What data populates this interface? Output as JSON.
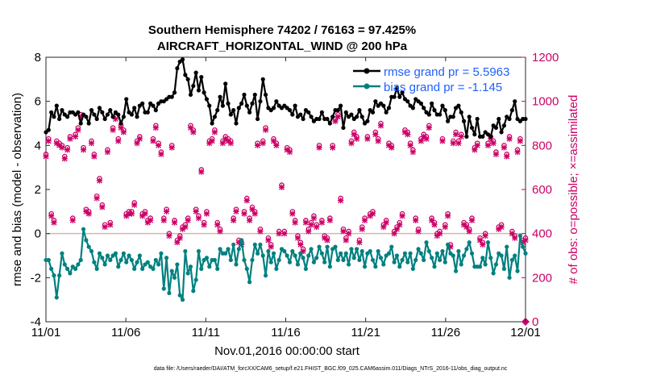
{
  "chart_data": {
    "type": "line",
    "title_line1": "Southern Hemisphere 74202 / 76163 = 97.425%",
    "title_line2": "AIRCRAFT_HORIZONTAL_WIND @ 200 hPa",
    "xlabel": "Nov.01,2016 00:00:00 start",
    "ylabel_left": "rmse and bias (model - observation)",
    "ylabel_right": "# of obs: o=possible; ×=assimilated",
    "footnote": "data file: /Users/raeder/DAI/ATM_forcXX/CAM6_setup/f.e21.FHIST_BGC.f09_025.CAM6assim.011/Diags_NTrS_2016-11/obs_diag_output.nc",
    "x_ticks": [
      "11/01",
      "11/06",
      "11/11",
      "11/16",
      "11/21",
      "11/26",
      "12/01"
    ],
    "x_range_days": [
      0,
      30
    ],
    "y_left_ticks": [
      "-4",
      "-2",
      "0",
      "2",
      "4",
      "6",
      "8"
    ],
    "y_left_range": [
      -4,
      8
    ],
    "y_right_ticks": [
      "0",
      "200",
      "400",
      "600",
      "800",
      "1000",
      "1200"
    ],
    "y_right_range": [
      0,
      1200
    ],
    "legend": [
      {
        "label": "rmse grand pr = 5.5963",
        "series": "rmse"
      },
      {
        "label": "bias grand pr = -1.145",
        "series": "bias"
      }
    ],
    "colors": {
      "rmse": "#000000",
      "bias": "#008080",
      "obs": "#cc0066",
      "legend_text": "#1f5fff",
      "zero_line": "#d9b3b3"
    },
    "series": [
      {
        "name": "rmse",
        "axis": "left",
        "values": [
          4.6,
          4.7,
          5.5,
          5.3,
          5.8,
          5.2,
          5.6,
          5.4,
          5.3,
          5.5,
          5.5,
          5.4,
          5.5,
          5.0,
          5.4,
          5.3,
          5.0,
          5.6,
          5.4,
          5.2,
          5.7,
          5.5,
          5.2,
          5.4,
          5.6,
          5.3,
          5.5,
          5.4,
          5.0,
          5.3,
          6.1,
          5.5,
          5.4,
          5.7,
          5.3,
          5.8,
          5.9,
          5.5,
          5.5,
          5.9,
          5.8,
          5.6,
          5.9,
          6.0,
          6.0,
          6.1,
          6.2,
          6.2,
          6.4,
          7.5,
          7.8,
          7.9,
          7.2,
          7.0,
          6.3,
          6.7,
          7.3,
          6.5,
          7.1,
          6.4,
          6.1,
          5.8,
          5.0,
          5.3,
          5.6,
          6.2,
          5.8,
          6.8,
          5.9,
          5.4,
          5.6,
          5.0,
          5.7,
          5.9,
          6.3,
          5.8,
          5.5,
          5.9,
          6.3,
          5.2,
          6.0,
          7.0,
          6.3,
          5.7,
          5.6,
          5.7,
          6.0,
          5.8,
          5.7,
          5.8,
          5.7,
          5.6,
          5.4,
          5.8,
          5.3,
          5.4,
          5.2,
          5.6,
          5.5,
          5.3,
          5.1,
          5.2,
          5.2,
          5.5,
          5.2,
          5.2,
          5.0,
          5.3,
          5.6,
          5.6,
          5.8,
          4.8,
          5.5,
          5.3,
          5.4,
          5.2,
          5.3,
          5.6,
          5.3,
          5.0,
          5.1,
          5.6,
          5.5,
          6.0,
          5.8,
          5.9,
          5.8,
          5.5,
          5.7,
          6.2,
          6.2,
          6.6,
          6.2,
          6.4,
          6.1,
          6.0,
          5.8,
          5.7,
          6.1,
          6.0,
          5.9,
          5.7,
          5.5,
          5.4,
          5.9,
          5.6,
          5.4,
          5.4,
          5.8,
          5.6,
          5.1,
          5.3,
          5.3,
          5.7,
          5.8,
          5.5,
          5.1,
          4.4,
          5.3,
          4.8,
          4.5,
          5.2,
          4.4,
          4.4,
          4.6,
          4.5,
          4.4,
          4.9,
          4.8,
          5.2,
          4.6,
          4.9,
          5.3,
          5.2,
          5.6,
          6.0,
          5.2,
          5.1,
          5.2,
          5.2
        ]
      },
      {
        "name": "bias",
        "axis": "left",
        "values": [
          -1.2,
          -1.2,
          -1.6,
          -1.9,
          -2.9,
          -1.9,
          -0.9,
          -1.4,
          -1.6,
          -1.8,
          -1.5,
          -1.6,
          -1.4,
          -1.2,
          0.2,
          -0.3,
          -0.6,
          -0.8,
          -1.3,
          -1.6,
          -0.9,
          -1.1,
          -1.4,
          -1.0,
          -1.2,
          -1.0,
          -0.9,
          -1.5,
          -1.2,
          -0.9,
          -1.3,
          -1.0,
          -1.2,
          -1.6,
          -1.3,
          -1.0,
          -1.6,
          -1.4,
          -1.3,
          -1.5,
          -1.6,
          -1.2,
          -1.4,
          -0.9,
          -2.5,
          -1.1,
          -2.7,
          -1.7,
          -2.0,
          -1.4,
          -2.8,
          -3.0,
          -0.8,
          -1.8,
          -1.5,
          -2.6,
          -2.1,
          -0.8,
          -1.6,
          -1.2,
          -1.1,
          -1.5,
          -1.2,
          -1.2,
          -1.6,
          -0.7,
          -0.9,
          -0.9,
          -0.7,
          -1.2,
          -0.5,
          -1.4,
          -0.7,
          -0.3,
          -1.2,
          -1.6,
          -2.2,
          -1.2,
          -0.5,
          -0.9,
          -0.5,
          -1.0,
          -1.9,
          -0.8,
          -1.3,
          -0.9,
          -1.6,
          -1.2,
          -0.7,
          -0.8,
          -1.0,
          -1.3,
          -0.8,
          -1.0,
          -1.4,
          -0.9,
          -1.1,
          -1.6,
          -1.0,
          -0.7,
          -1.3,
          -1.1,
          -0.6,
          -0.9,
          -1.3,
          -0.6,
          -1.5,
          -0.7,
          -0.6,
          -1.2,
          -0.9,
          -1.2,
          -0.9,
          -1.4,
          -0.7,
          -1.1,
          -0.7,
          -1.2,
          -0.8,
          -1.5,
          -0.9,
          -0.8,
          -1.2,
          -1.5,
          -0.8,
          -1.1,
          -1.4,
          -1.0,
          -0.9,
          -0.6,
          -1.3,
          -1.0,
          -1.5,
          -1.2,
          -0.9,
          -1.3,
          -0.9,
          -1.6,
          -1.2,
          -0.7,
          -0.9,
          -1.2,
          -0.4,
          -0.8,
          -1.1,
          -1.5,
          -0.9,
          -1.2,
          -0.8,
          -1.3,
          -0.5,
          -0.9,
          -1.0,
          -1.7,
          -0.8,
          -1.4,
          -1.0,
          -0.7,
          -0.4,
          -0.9,
          -1.5,
          -1.5,
          -1.5,
          -1.1,
          -1.4,
          -0.4,
          -1.1,
          -1.8,
          -1.4,
          -0.9,
          -1.0,
          -1.6,
          -0.6,
          -2.0,
          -1.2,
          -1.0,
          -1.7,
          -0.1,
          -0.6,
          -0.9
        ]
      },
      {
        "name": "obs_possible",
        "axis": "right",
        "values": [
          760,
          830,
          490,
          460,
          820,
          810,
          800,
          750,
          790,
          840,
          470,
          850,
          880,
          940,
          790,
          510,
          500,
          820,
          760,
          570,
          650,
          530,
          440,
          780,
          450,
          880,
          930,
          830,
          890,
          870,
          490,
          500,
          500,
          540,
          820,
          840,
          490,
          500,
          460,
          470,
          830,
          890,
          810,
          770,
          470,
          510,
          400,
          800,
          460,
          370,
          390,
          430,
          440,
          470,
          890,
          870,
          510,
          480,
          690,
          450,
          500,
          820,
          830,
          870,
          450,
          420,
          820,
          840,
          830,
          820,
          470,
          510,
          370,
          360,
          500,
          560,
          470,
          520,
          500,
          810,
          420,
          820,
          880,
          380,
          350,
          830,
          810,
          410,
          620,
          410,
          790,
          780,
          500,
          460,
          390,
          360,
          330,
          460,
          420,
          450,
          480,
          440,
          800,
          460,
          390,
          380,
          470,
          800,
          920,
          940,
          560,
          420,
          380,
          410,
          820,
          860,
          840,
          370,
          430,
          470,
          840,
          490,
          500,
          860,
          830,
          900,
          440,
          460,
          810,
          800,
          410,
          430,
          450,
          490,
          870,
          860,
          810,
          780,
          470,
          420,
          830,
          850,
          840,
          890,
          470,
          450,
          400,
          410,
          830,
          440,
          490,
          350,
          820,
          860,
          820,
          850,
          450,
          440,
          420,
          470,
          790,
          810,
          380,
          360,
          400,
          810,
          840,
          820,
          770,
          430,
          440,
          800,
          760,
          840,
          410,
          390,
          780,
          830,
          370,
          380
        ]
      },
      {
        "name": "obs_assimilated",
        "axis": "right",
        "values": [
          750,
          820,
          480,
          450,
          810,
          800,
          790,
          740,
          780,
          830,
          460,
          840,
          870,
          930,
          780,
          500,
          490,
          810,
          750,
          560,
          640,
          520,
          430,
          770,
          440,
          870,
          920,
          820,
          880,
          860,
          480,
          490,
          490,
          530,
          810,
          830,
          480,
          490,
          450,
          460,
          820,
          880,
          800,
          760,
          460,
          500,
          390,
          790,
          450,
          360,
          380,
          420,
          430,
          460,
          880,
          860,
          500,
          470,
          680,
          440,
          490,
          810,
          820,
          860,
          440,
          410,
          810,
          830,
          820,
          810,
          460,
          500,
          360,
          350,
          490,
          550,
          460,
          510,
          490,
          800,
          410,
          810,
          870,
          370,
          340,
          820,
          800,
          400,
          610,
          400,
          780,
          770,
          490,
          450,
          380,
          350,
          320,
          450,
          410,
          440,
          470,
          430,
          790,
          450,
          380,
          370,
          460,
          790,
          910,
          930,
          550,
          410,
          370,
          400,
          810,
          850,
          830,
          360,
          420,
          460,
          830,
          480,
          490,
          850,
          820,
          890,
          430,
          450,
          800,
          790,
          400,
          420,
          440,
          480,
          860,
          850,
          800,
          770,
          460,
          410,
          820,
          840,
          830,
          880,
          460,
          440,
          390,
          400,
          820,
          430,
          480,
          340,
          810,
          850,
          810,
          840,
          440,
          430,
          410,
          460,
          780,
          800,
          370,
          350,
          390,
          800,
          830,
          810,
          760,
          420,
          430,
          790,
          750,
          830,
          400,
          380,
          770,
          820,
          360,
          370
        ]
      }
    ]
  }
}
